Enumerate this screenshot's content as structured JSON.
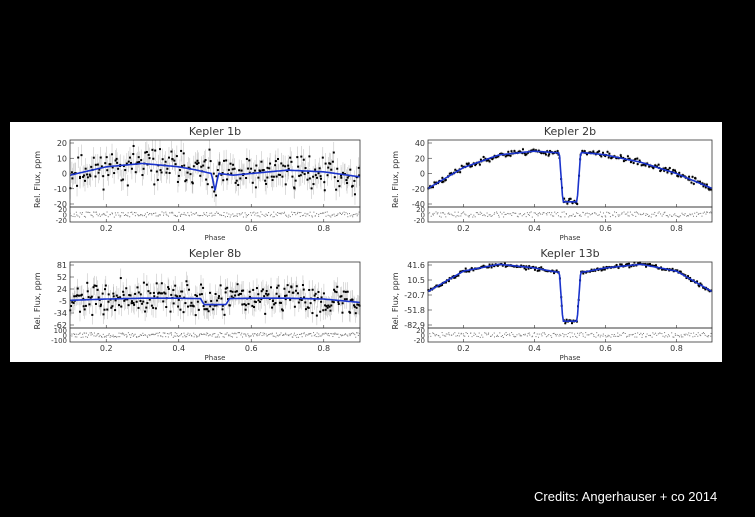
{
  "colors": {
    "background": "#000000",
    "panel": "#ffffff",
    "model": "#1a33cc",
    "data": "#000000",
    "errorbars": "#bbbbbb"
  },
  "credits": "Credits: Angerhauser + co 2014",
  "chart_data": [
    {
      "type": "scatter",
      "title": "Kepler 1b",
      "xlabel": "Phase",
      "ylabel": "Rel. Flux, ppm",
      "xlim": [
        0.1,
        0.9
      ],
      "x_ticks": [
        "0.2",
        "0.4",
        "0.6",
        "0.8"
      ],
      "ylim": [
        -20,
        20
      ],
      "y_ticks": [
        "20",
        "10",
        "0",
        "-10",
        "-20"
      ],
      "resid_ticks": [
        "20",
        "0",
        "-20"
      ],
      "model_series": {
        "name": "model",
        "x": [
          0.1,
          0.2,
          0.3,
          0.4,
          0.45,
          0.49,
          0.5,
          0.51,
          0.55,
          0.6,
          0.7,
          0.8,
          0.9
        ],
        "y": [
          -1,
          4,
          6,
          4,
          2,
          0,
          -10,
          0,
          -1,
          0,
          2,
          1,
          -2
        ]
      },
      "observations": {
        "count": 260,
        "scatter": 7,
        "noise_seed": 11
      }
    },
    {
      "type": "scatter",
      "title": "Kepler 2b",
      "xlabel": "Phase",
      "ylabel": "Rel. Flux, ppm",
      "xlim": [
        0.1,
        0.9
      ],
      "x_ticks": [
        "0.2",
        "0.4",
        "0.6",
        "0.8"
      ],
      "ylim": [
        -45,
        45
      ],
      "y_ticks": [
        "40",
        "20",
        "0",
        "-20",
        "-40"
      ],
      "resid_ticks": [
        "20",
        "0",
        "-20"
      ],
      "model_series": {
        "name": "model",
        "x": [
          0.1,
          0.2,
          0.3,
          0.4,
          0.46,
          0.47,
          0.48,
          0.52,
          0.53,
          0.54,
          0.6,
          0.7,
          0.8,
          0.9
        ],
        "y": [
          -20,
          8,
          25,
          30,
          28,
          28,
          -38,
          -38,
          28,
          28,
          25,
          15,
          0,
          -20
        ]
      },
      "observations": {
        "count": 240,
        "scatter": 3,
        "noise_seed": 23
      }
    },
    {
      "type": "scatter",
      "title": "Kepler 8b",
      "xlabel": "Phase",
      "ylabel": "Rel. Flux, ppm",
      "xlim": [
        0.1,
        0.9
      ],
      "x_ticks": [
        "0.2",
        "0.4",
        "0.6",
        "0.8"
      ],
      "ylim": [
        -65,
        90
      ],
      "y_ticks": [
        "81",
        "52",
        "24",
        "-5",
        "-34",
        "-62"
      ],
      "resid_ticks": [
        "100",
        "0",
        "-100"
      ],
      "model_series": {
        "name": "model",
        "x": [
          0.1,
          0.2,
          0.3,
          0.4,
          0.46,
          0.47,
          0.53,
          0.54,
          0.6,
          0.7,
          0.8,
          0.9
        ],
        "y": [
          0,
          3,
          5,
          5,
          4,
          -10,
          -10,
          4,
          5,
          5,
          3,
          -5
        ]
      },
      "observations": {
        "count": 300,
        "scatter": 25,
        "noise_seed": 37
      }
    },
    {
      "type": "scatter",
      "title": "Kepler 13b",
      "xlabel": "Phase",
      "ylabel": "Rel. Flux, ppm",
      "xlim": [
        0.1,
        0.9
      ],
      "x_ticks": [
        "0.2",
        "0.4",
        "0.6",
        "0.8"
      ],
      "ylim": [
        -90,
        55
      ],
      "y_ticks": [
        "41.6",
        "10.5",
        "-20.7",
        "-51.8",
        "-82.9"
      ],
      "resid_ticks": [
        "20",
        "0",
        "-20"
      ],
      "model_series": {
        "name": "model",
        "x": [
          0.1,
          0.2,
          0.3,
          0.4,
          0.46,
          0.47,
          0.48,
          0.52,
          0.53,
          0.54,
          0.6,
          0.7,
          0.8,
          0.9
        ],
        "y": [
          -10,
          35,
          50,
          42,
          33,
          33,
          -75,
          -75,
          33,
          33,
          42,
          50,
          35,
          -10
        ]
      },
      "observations": {
        "count": 240,
        "scatter": 3,
        "noise_seed": 51
      }
    }
  ]
}
